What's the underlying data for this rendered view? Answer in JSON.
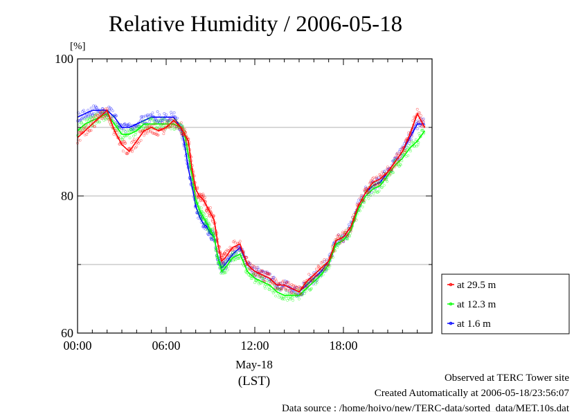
{
  "chart_data": {
    "type": "line",
    "title": "Relative Humidity / 2006-05-18",
    "ylabel": "[%]",
    "xlabel_date": "May-18",
    "xlabel_unit": "(LST)",
    "x_ticks": [
      "00:00",
      "06:00",
      "12:00",
      "18:00"
    ],
    "y_ticks": [
      60,
      80,
      100
    ],
    "xlim": [
      0,
      24
    ],
    "ylim": [
      60,
      100
    ],
    "grid": "horizontal",
    "legend_position": "right",
    "x": [
      0,
      0.5,
      1,
      1.5,
      2,
      2.5,
      3,
      3.5,
      4,
      4.5,
      5,
      5.5,
      6,
      6.5,
      7,
      7.25,
      7.5,
      7.75,
      8,
      8.25,
      8.5,
      8.75,
      9,
      9.25,
      9.5,
      9.75,
      10,
      10.5,
      11,
      11.5,
      12,
      12.5,
      13,
      13.5,
      14,
      14.5,
      15,
      15.5,
      16,
      16.5,
      17,
      17.5,
      18,
      18.5,
      19,
      19.5,
      20,
      20.5,
      21,
      21.5,
      22,
      22.5,
      23,
      23.5
    ],
    "series": [
      {
        "name": "at 29.5 m",
        "color": "#ff0000",
        "values": [
          88.5,
          89.5,
          90.5,
          91.5,
          92.5,
          89.5,
          87.5,
          86.5,
          88,
          89.5,
          90,
          89.5,
          90,
          91,
          90,
          89,
          88,
          84,
          81,
          80,
          79.5,
          78.5,
          77.5,
          76.5,
          73,
          70.5,
          71,
          72.5,
          73,
          70,
          69,
          68.5,
          68,
          67,
          67,
          66.5,
          66,
          67.5,
          68.5,
          69.5,
          70.5,
          73.5,
          74,
          75.5,
          78.5,
          80.5,
          82,
          82.5,
          83.5,
          85,
          86.5,
          89,
          92,
          90
        ]
      },
      {
        "name": "at 12.3 m",
        "color": "#00ff00",
        "values": [
          89.5,
          90.5,
          91,
          91.5,
          92,
          90.5,
          89,
          89,
          89.5,
          90.5,
          90.5,
          90.5,
          90.5,
          90.5,
          90,
          89,
          86,
          83,
          79.5,
          78,
          77,
          76,
          75,
          74,
          71,
          69,
          69.5,
          71,
          71.5,
          69,
          68,
          67.5,
          67,
          66,
          65.5,
          65.5,
          65.5,
          66.5,
          67.5,
          68.5,
          70,
          73,
          73.5,
          75,
          78,
          80,
          81,
          81.5,
          83,
          84.5,
          85.5,
          87,
          88,
          89.5
        ]
      },
      {
        "name": "at 1.6 m",
        "color": "#0000ff",
        "values": [
          91.5,
          92,
          92.5,
          92.5,
          92.5,
          91.5,
          90,
          90,
          90.5,
          91,
          91.5,
          91.5,
          91.5,
          91.5,
          90,
          87.5,
          84,
          81.5,
          78.5,
          77,
          76,
          75.5,
          74.5,
          74,
          71,
          69.5,
          70,
          71.5,
          72.5,
          70,
          69,
          68.5,
          68,
          67,
          67,
          66.5,
          66,
          67,
          68,
          69,
          70.5,
          73.5,
          74,
          75.5,
          78.5,
          80.5,
          81.5,
          82,
          83.5,
          85,
          86.5,
          88.5,
          90.5,
          90.5
        ]
      }
    ]
  },
  "footer": {
    "line1": "Observed at TERC Tower site",
    "line2": "Created Automatically at 2006-05-18/23:56:07",
    "line3": "Data source : /home/hoivo/new/TERC-data/sorted_data/MET.10s.dat"
  }
}
